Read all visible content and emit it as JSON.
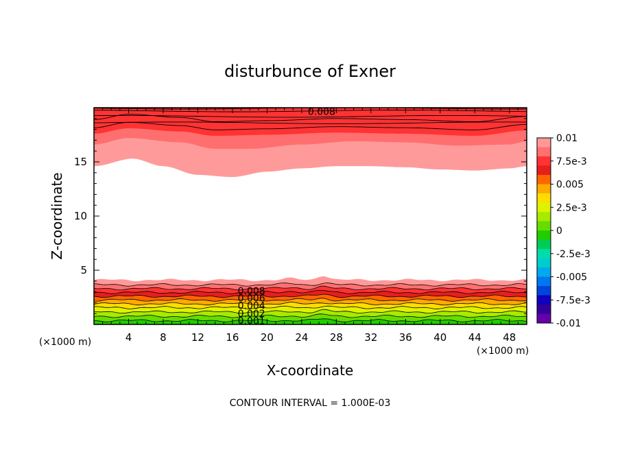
{
  "chart_data": {
    "type": "contour",
    "title": "disturbunce of Exner",
    "xlabel": "X-coordinate",
    "ylabel": "Z-coordinate",
    "x_unit": "(×1000 m)",
    "y_unit": "(×1000 m)",
    "xlim": [
      0,
      50
    ],
    "ylim": [
      0,
      20
    ],
    "x_ticks": [
      "4",
      "8",
      "12",
      "16",
      "20",
      "24",
      "28",
      "32",
      "36",
      "40",
      "44",
      "48"
    ],
    "y_ticks": [
      "5",
      "10",
      "15"
    ],
    "colorbar": {
      "labels": [
        "0.01",
        "7.5e-3",
        "0.005",
        "2.5e-3",
        "0",
        "-2.5e-3",
        "-0.005",
        "-7.5e-3",
        "-0.01"
      ],
      "colors_top_to_bottom": [
        "#ff9999",
        "#ff7070",
        "#ff3333",
        "#e61e1e",
        "#ff6600",
        "#ffaa00",
        "#ffdd00",
        "#dff200",
        "#a8ea00",
        "#66dd00",
        "#22cc00",
        "#00cc55",
        "#00ddaa",
        "#00cccc",
        "#00aaee",
        "#0077ee",
        "#0044dd",
        "#1100bb",
        "#330099",
        "#6600aa"
      ]
    },
    "contour_labels": [
      "0.008",
      "0.008",
      "0.006",
      "0.004",
      "0.002",
      "0.001"
    ],
    "contour_interval_text": "CONTOUR INTERVAL = 1.000E-03",
    "top_band": {
      "upper_color": "#ff3333",
      "mid_color": "#ff6f6f",
      "lower_color": "#ff9a9a",
      "lower_edge_z": [
        [
          0,
          14.6
        ],
        [
          4.5,
          15.3
        ],
        [
          8,
          14.6
        ],
        [
          12,
          13.8
        ],
        [
          16,
          13.6
        ],
        [
          20,
          14.1
        ],
        [
          24,
          14.4
        ],
        [
          28,
          14.6
        ],
        [
          32,
          14.6
        ],
        [
          36,
          14.5
        ],
        [
          40,
          14.3
        ],
        [
          44,
          14.2
        ],
        [
          48,
          14.4
        ],
        [
          50,
          14.6
        ]
      ],
      "mid_edge_z": [
        [
          0,
          16.6
        ],
        [
          4,
          17.2
        ],
        [
          10,
          16.8
        ],
        [
          14,
          16.2
        ],
        [
          18,
          16.2
        ],
        [
          24,
          16.6
        ],
        [
          30,
          16.9
        ],
        [
          36,
          16.8
        ],
        [
          42,
          16.5
        ],
        [
          48,
          16.6
        ],
        [
          50,
          16.9
        ]
      ],
      "upper_edge_z": [
        [
          0,
          17.6
        ],
        [
          4,
          18.1
        ],
        [
          10,
          17.8
        ],
        [
          14,
          17.4
        ],
        [
          20,
          17.5
        ],
        [
          28,
          17.7
        ],
        [
          36,
          17.6
        ],
        [
          44,
          17.4
        ],
        [
          50,
          17.9
        ]
      ],
      "contour_lines_z": [
        [
          18.6,
          19.2,
          19.7,
          19.95
        ]
      ]
    },
    "bottom_band": {
      "layers_bottom_to_top": [
        {
          "top_z": 0.35,
          "color": "#22cc00"
        },
        {
          "top_z": 0.75,
          "color": "#66dd00"
        },
        {
          "top_z": 1.15,
          "color": "#a8ea00"
        },
        {
          "top_z": 1.55,
          "color": "#dff200"
        },
        {
          "top_z": 1.9,
          "color": "#ffdd00"
        },
        {
          "top_z": 2.25,
          "color": "#ffaa00"
        },
        {
          "top_z": 2.6,
          "color": "#ff6600"
        },
        {
          "top_z": 2.95,
          "color": "#e61e1e"
        },
        {
          "top_z": 3.3,
          "color": "#ff3333"
        },
        {
          "top_z": 3.65,
          "color": "#ff7070"
        },
        {
          "top_z": 4.1,
          "color": "#ff9999"
        }
      ],
      "bump_x": 26.5,
      "bump_z": 0.45
    }
  }
}
